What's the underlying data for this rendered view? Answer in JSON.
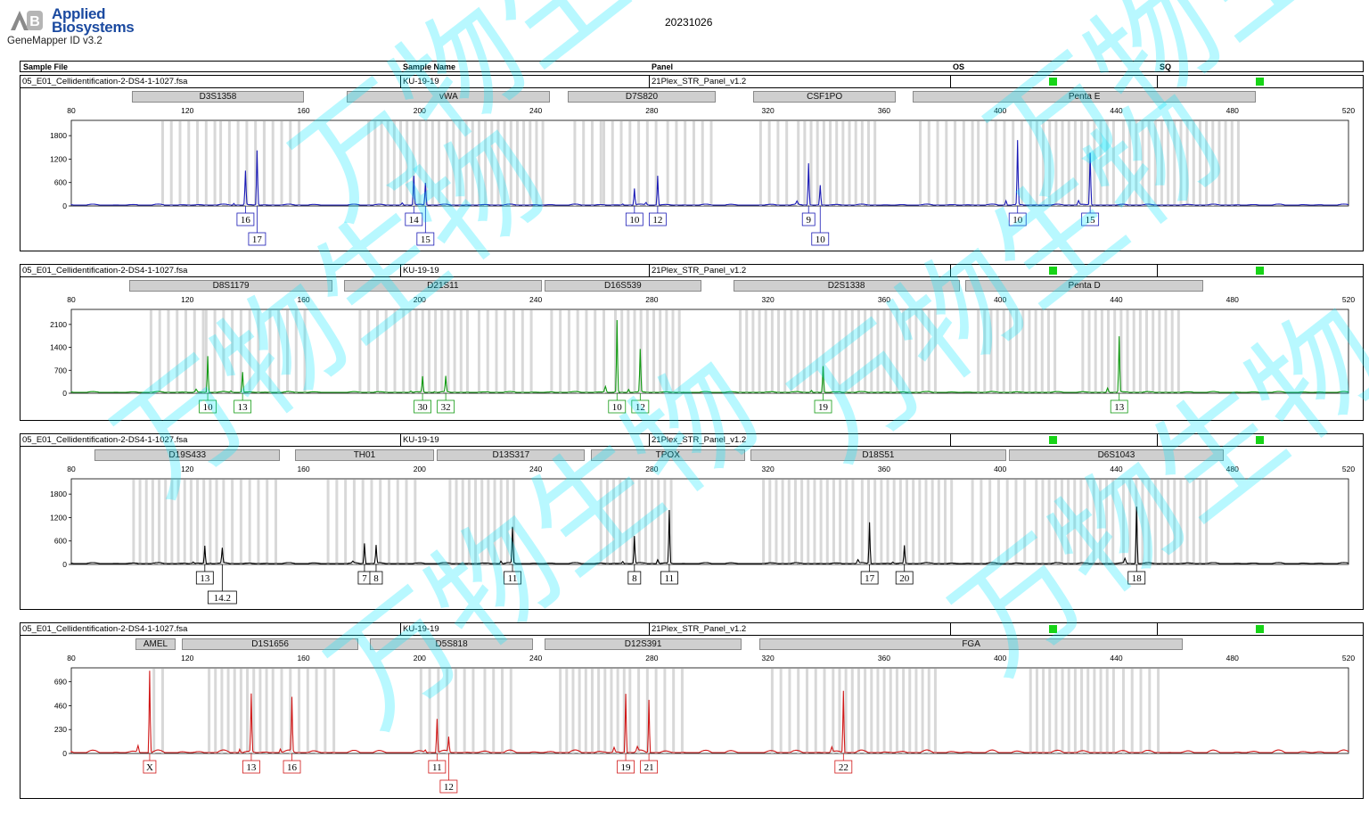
{
  "header": {
    "brand_line1": "Applied",
    "brand_line2": "Biosystems",
    "app_name": "GeneMapper ID v3.2",
    "run_date": "20231026",
    "columns": [
      "Sample File",
      "Sample Name",
      "Panel",
      "OS",
      "SQ"
    ]
  },
  "colors": {
    "panel_flag": "#17d417",
    "marker_bar": "#cfcfcf",
    "bin": "#d8d8d8",
    "watermark": "#00e5ff"
  },
  "watermark_text": "万物生物",
  "panels": [
    {
      "sample_file": "05_E01_Cellidentification-2-DS4-1-1027.fsa",
      "sample_name": "KU-19-19",
      "panel_name": "21Plex_STR_Panel_v1.2",
      "color": "#1a1ab5",
      "markers": [
        {
          "name": "D3S1358",
          "start": 101,
          "end": 160
        },
        {
          "name": "vWA",
          "start": 175,
          "end": 245
        },
        {
          "name": "D7S820",
          "start": 251,
          "end": 302
        },
        {
          "name": "CSF1PO",
          "start": 315,
          "end": 364
        },
        {
          "name": "Penta E",
          "start": 370,
          "end": 488
        }
      ],
      "bins": [
        [
          111,
          130
        ],
        [
          131,
          146
        ],
        [
          146,
          158
        ],
        [
          182,
          208
        ],
        [
          209,
          242
        ],
        [
          253,
          262
        ],
        [
          263,
          283
        ],
        [
          285,
          300
        ],
        [
          317,
          328
        ],
        [
          330,
          357
        ],
        [
          372,
          390
        ],
        [
          392,
          408
        ],
        [
          410,
          440
        ],
        [
          442,
          482
        ]
      ],
      "chart_data": {
        "type": "line",
        "xlim": [
          80,
          520
        ],
        "xticks": [
          80,
          120,
          160,
          200,
          240,
          280,
          320,
          360,
          400,
          440,
          480,
          520
        ],
        "ylim": [
          0,
          2100
        ],
        "yticks": [
          0,
          600,
          1200,
          1800
        ],
        "peaks": [
          {
            "x": 140,
            "height": 760,
            "allele": "16",
            "row": 0
          },
          {
            "x": 144,
            "height": 1400,
            "allele": "17",
            "row": 1
          },
          {
            "x": 198,
            "height": 700,
            "allele": "14",
            "row": 0
          },
          {
            "x": 202,
            "height": 570,
            "allele": "15",
            "row": 1
          },
          {
            "x": 274,
            "height": 420,
            "allele": "10",
            "row": 0
          },
          {
            "x": 282,
            "height": 760,
            "allele": "12",
            "row": 0
          },
          {
            "x": 334,
            "height": 1040,
            "allele": "9",
            "row": 0
          },
          {
            "x": 338,
            "height": 510,
            "allele": "10",
            "row": 1
          },
          {
            "x": 406,
            "height": 1650,
            "allele": "10",
            "row": 0
          },
          {
            "x": 431,
            "height": 1340,
            "allele": "15",
            "row": 0
          }
        ]
      }
    },
    {
      "sample_file": "05_E01_Cellidentification-2-DS4-1-1027.fsa",
      "sample_name": "KU-19-19",
      "panel_name": "21Plex_STR_Panel_v1.2",
      "color": "#119a11",
      "markers": [
        {
          "name": "D8S1179",
          "start": 100,
          "end": 170
        },
        {
          "name": "D21S11",
          "start": 174,
          "end": 242
        },
        {
          "name": "D16S539",
          "start": 243,
          "end": 297
        },
        {
          "name": "D2S1338",
          "start": 308,
          "end": 386
        },
        {
          "name": "Penta D",
          "start": 388,
          "end": 470
        }
      ],
      "bins": [
        [
          107,
          125
        ],
        [
          126,
          146
        ],
        [
          148,
          162
        ],
        [
          179,
          193
        ],
        [
          194,
          218
        ],
        [
          220,
          240
        ],
        [
          245,
          265
        ],
        [
          267,
          290
        ],
        [
          310,
          340
        ],
        [
          342,
          378
        ],
        [
          392,
          420
        ],
        [
          428,
          462
        ]
      ],
      "chart_data": {
        "type": "line",
        "xlim": [
          80,
          520
        ],
        "xticks": [
          80,
          120,
          160,
          200,
          240,
          280,
          320,
          360,
          400,
          440,
          480,
          520
        ],
        "ylim": [
          0,
          2450
        ],
        "yticks": [
          0,
          700,
          1400,
          2100
        ],
        "peaks": [
          {
            "x": 127,
            "height": 1120,
            "allele": "10",
            "row": 0
          },
          {
            "x": 139,
            "height": 620,
            "allele": "13",
            "row": 0
          },
          {
            "x": 201,
            "height": 480,
            "allele": "30",
            "row": 0
          },
          {
            "x": 209,
            "height": 480,
            "allele": "32",
            "row": 0
          },
          {
            "x": 268,
            "height": 2200,
            "allele": "10",
            "row": 0
          },
          {
            "x": 276,
            "height": 1300,
            "allele": "12",
            "row": 0
          },
          {
            "x": 339,
            "height": 800,
            "allele": "19",
            "row": 0
          },
          {
            "x": 441,
            "height": 1700,
            "allele": "13",
            "row": 0
          }
        ]
      }
    },
    {
      "sample_file": "05_E01_Cellidentification-2-DS4-1-1027.fsa",
      "sample_name": "KU-19-19",
      "panel_name": "21Plex_STR_Panel_v1.2",
      "color": "#000000",
      "markers": [
        {
          "name": "D19S433",
          "start": 88,
          "end": 152
        },
        {
          "name": "TH01",
          "start": 157,
          "end": 205
        },
        {
          "name": "D13S317",
          "start": 206,
          "end": 257
        },
        {
          "name": "TPOX",
          "start": 259,
          "end": 312
        },
        {
          "name": "D18S51",
          "start": 314,
          "end": 402
        },
        {
          "name": "D6S1043",
          "start": 403,
          "end": 477
        }
      ],
      "bins": [
        [
          101,
          130
        ],
        [
          132,
          152
        ],
        [
          168,
          184
        ],
        [
          186,
          200
        ],
        [
          210,
          234
        ],
        [
          262,
          288
        ],
        [
          318,
          350
        ],
        [
          352,
          384
        ],
        [
          390,
          410
        ],
        [
          412,
          440
        ],
        [
          442,
          472
        ]
      ],
      "chart_data": {
        "type": "line",
        "xlim": [
          80,
          520
        ],
        "xticks": [
          80,
          120,
          160,
          200,
          240,
          280,
          320,
          360,
          400,
          440,
          480,
          520
        ],
        "ylim": [
          0,
          2100
        ],
        "yticks": [
          0,
          600,
          1200,
          1800
        ],
        "peaks": [
          {
            "x": 126,
            "height": 460,
            "allele": "13",
            "row": 0
          },
          {
            "x": 132,
            "height": 380,
            "allele": "14.2",
            "row": 1
          },
          {
            "x": 181,
            "height": 500,
            "allele": "7",
            "row": 0
          },
          {
            "x": 185,
            "height": 460,
            "allele": "8",
            "row": 0
          },
          {
            "x": 232,
            "height": 920,
            "allele": "11",
            "row": 0
          },
          {
            "x": 274,
            "height": 700,
            "allele": "8",
            "row": 0
          },
          {
            "x": 286,
            "height": 1360,
            "allele": "11",
            "row": 0
          },
          {
            "x": 355,
            "height": 1060,
            "allele": "17",
            "row": 0
          },
          {
            "x": 367,
            "height": 460,
            "allele": "20",
            "row": 0
          },
          {
            "x": 447,
            "height": 1480,
            "allele": "18",
            "row": 0
          }
        ]
      }
    },
    {
      "sample_file": "05_E01_Cellidentification-2-DS4-1-1027.fsa",
      "sample_name": "KU-19-19",
      "panel_name": "21Plex_STR_Panel_v1.2",
      "color": "#d01818",
      "markers": [
        {
          "name": "AMEL",
          "start": 102,
          "end": 116
        },
        {
          "name": "D1S1656",
          "start": 118,
          "end": 179
        },
        {
          "name": "D5S818",
          "start": 183,
          "end": 239
        },
        {
          "name": "D12S391",
          "start": 243,
          "end": 311
        },
        {
          "name": "FGA",
          "start": 317,
          "end": 463
        }
      ],
      "bins": [
        [
          108,
          112
        ],
        [
          127,
          150
        ],
        [
          152,
          170
        ],
        [
          200,
          220
        ],
        [
          222,
          232
        ],
        [
          248,
          270
        ],
        [
          272,
          290
        ],
        [
          321,
          340
        ],
        [
          342,
          378
        ],
        [
          410,
          440
        ],
        [
          442,
          454
        ]
      ],
      "chart_data": {
        "type": "line",
        "xlim": [
          80,
          520
        ],
        "xticks": [
          80,
          120,
          160,
          200,
          240,
          280,
          320,
          360,
          400,
          440,
          480,
          520
        ],
        "ylim": [
          0,
          790
        ],
        "yticks": [
          0,
          230,
          460,
          690
        ],
        "peaks": [
          {
            "x": 107,
            "height": 800,
            "allele": "X",
            "row": 0
          },
          {
            "x": 142,
            "height": 560,
            "allele": "13",
            "row": 0
          },
          {
            "x": 156,
            "height": 520,
            "allele": "16",
            "row": 0
          },
          {
            "x": 206,
            "height": 320,
            "allele": "11",
            "row": 0
          },
          {
            "x": 210,
            "height": 140,
            "allele": "12",
            "row": 1
          },
          {
            "x": 271,
            "height": 580,
            "allele": "19",
            "row": 0
          },
          {
            "x": 279,
            "height": 520,
            "allele": "21",
            "row": 0
          },
          {
            "x": 346,
            "height": 600,
            "allele": "22",
            "row": 0
          }
        ]
      }
    }
  ]
}
